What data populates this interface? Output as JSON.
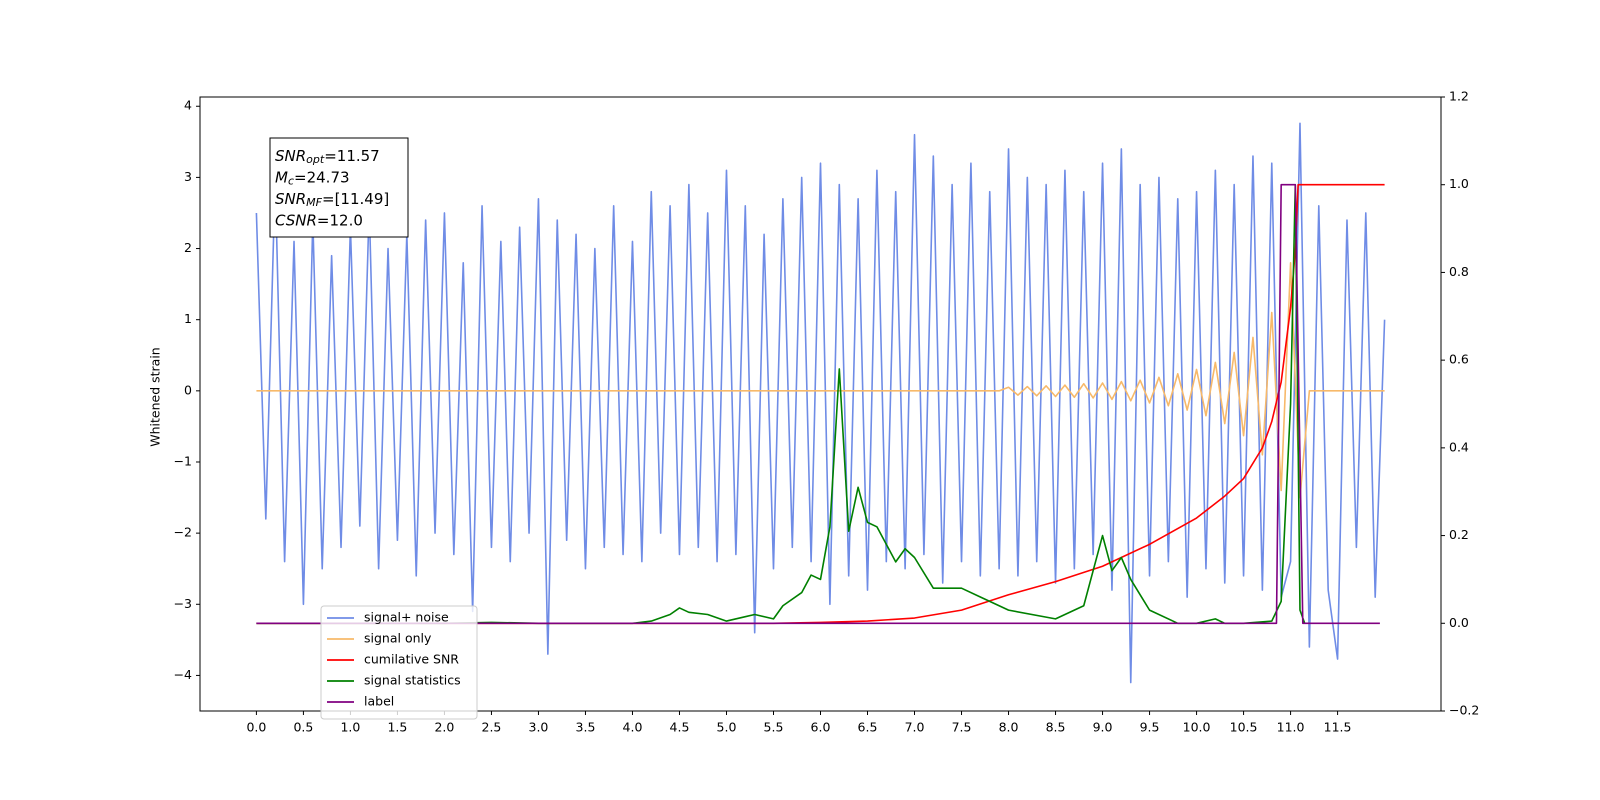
{
  "chart_data": {
    "type": "line",
    "ylabel": "Whitened strain",
    "xlim": [
      -0.6,
      12.6
    ],
    "ylim": [
      -4.5,
      4.13
    ],
    "y2lim": [
      -0.2,
      1.2
    ],
    "xticks": [
      {
        "value": 0,
        "label": "0.0"
      },
      0.5,
      {
        "value": 1,
        "label": "1.0"
      },
      1.5,
      {
        "value": 2,
        "label": "2.0"
      },
      2.5,
      {
        "value": 3,
        "label": "3.0"
      },
      3.5,
      {
        "value": 4,
        "label": "4.0"
      },
      4.5,
      {
        "value": 5,
        "label": "5.0"
      },
      5.5,
      {
        "value": 6,
        "label": "6.0"
      },
      6.5,
      {
        "value": 7,
        "label": "7.0"
      },
      7.5,
      {
        "value": 8,
        "label": "8.0"
      },
      8.5,
      {
        "value": 9,
        "label": "9.0"
      },
      9.5,
      {
        "value": 10,
        "label": "10.0"
      },
      10.5,
      {
        "value": 11,
        "label": "11.0"
      },
      11.5
    ],
    "yticks": [
      {
        "value": -4,
        "label": "−4"
      },
      {
        "value": -3,
        "label": "−3"
      },
      {
        "value": -2,
        "label": "−2"
      },
      {
        "value": -1,
        "label": "−1"
      },
      0,
      1,
      2,
      3,
      4
    ],
    "y2ticks": [
      {
        "value": -0.2,
        "label": "−0.2"
      },
      {
        "value": 0,
        "label": "0.0"
      },
      0.2,
      0.4,
      0.6,
      0.8,
      {
        "value": 1,
        "label": "1.0"
      },
      1.2
    ],
    "legend": "lower left",
    "annotations": [
      {
        "main": "SNR",
        "sub": "opt",
        "rest": "=11.57"
      },
      {
        "main": "M",
        "sub": "c",
        "rest": "=24.73"
      },
      {
        "main": "SNR",
        "sub": "MF",
        "rest": "=[11.49]"
      },
      {
        "main": "CSNR",
        "sub": null,
        "rest": "=12.0"
      }
    ],
    "series": [
      {
        "name": "signal+ noise",
        "color": "#6f8ce6",
        "axis": "y",
        "x": [
          0.0,
          0.1,
          0.2,
          0.3,
          0.4,
          0.5,
          0.6,
          0.7,
          0.8,
          0.9,
          1.0,
          1.1,
          1.2,
          1.3,
          1.4,
          1.5,
          1.6,
          1.7,
          1.8,
          1.9,
          2.0,
          2.1,
          2.2,
          2.3,
          2.4,
          2.5,
          2.6,
          2.7,
          2.8,
          2.9,
          3.0,
          3.1,
          3.2,
          3.3,
          3.4,
          3.5,
          3.6,
          3.7,
          3.8,
          3.9,
          4.0,
          4.1,
          4.2,
          4.3,
          4.4,
          4.5,
          4.6,
          4.7,
          4.8,
          4.9,
          5.0,
          5.1,
          5.2,
          5.3,
          5.4,
          5.5,
          5.6,
          5.7,
          5.8,
          5.9,
          6.0,
          6.1,
          6.2,
          6.3,
          6.4,
          6.5,
          6.6,
          6.7,
          6.8,
          6.9,
          7.0,
          7.1,
          7.2,
          7.3,
          7.4,
          7.5,
          7.6,
          7.7,
          7.8,
          7.9,
          8.0,
          8.1,
          8.2,
          8.3,
          8.4,
          8.5,
          8.6,
          8.7,
          8.8,
          8.9,
          9.0,
          9.1,
          9.2,
          9.3,
          9.4,
          9.5,
          9.6,
          9.7,
          9.8,
          9.9,
          10.0,
          10.1,
          10.2,
          10.3,
          10.4,
          10.5,
          10.6,
          10.7,
          10.8,
          10.9,
          11.0,
          11.1,
          11.2,
          11.3,
          11.4,
          11.5,
          11.6,
          11.7,
          11.8,
          11.9,
          12.0
        ],
        "values": [
          2.5,
          -1.8,
          3.0,
          -2.4,
          2.1,
          -3.0,
          2.4,
          -2.5,
          1.9,
          -2.2,
          2.3,
          -1.9,
          2.6,
          -2.5,
          2.0,
          -2.1,
          2.2,
          -2.6,
          2.4,
          -2.0,
          2.5,
          -2.3,
          1.8,
          -3.1,
          2.6,
          -2.2,
          2.1,
          -2.4,
          2.3,
          -2.0,
          2.7,
          -3.7,
          2.4,
          -2.1,
          2.2,
          -2.5,
          2.0,
          -2.2,
          2.6,
          -2.3,
          2.1,
          -2.4,
          2.8,
          -2.0,
          2.6,
          -2.3,
          2.9,
          -2.2,
          2.5,
          -2.4,
          3.1,
          -2.3,
          2.6,
          -3.4,
          2.2,
          -2.5,
          2.7,
          -2.2,
          3.0,
          -2.4,
          3.2,
          -3.0,
          2.9,
          -2.6,
          2.7,
          -2.8,
          3.1,
          -2.4,
          2.8,
          -2.5,
          3.6,
          -2.3,
          3.3,
          -2.7,
          2.9,
          -2.4,
          3.2,
          -2.6,
          2.8,
          -2.5,
          3.4,
          -2.6,
          3.0,
          -2.4,
          2.9,
          -2.7,
          3.1,
          -2.5,
          2.8,
          -2.3,
          3.2,
          -2.8,
          3.4,
          -4.1,
          2.9,
          -2.6,
          3.0,
          -2.4,
          2.7,
          -2.9,
          2.8,
          -2.5,
          3.1,
          -2.7,
          2.9,
          -2.6,
          3.3,
          -2.8,
          3.2,
          -2.9,
          -2.4,
          3.76,
          -3.6,
          2.6,
          -2.8,
          -3.77,
          2.4,
          -2.2,
          2.5,
          -2.9,
          1.0
        ]
      },
      {
        "name": "signal only",
        "color": "#f7b96a",
        "axis": "y",
        "x": [
          0,
          7.9,
          8.0,
          8.1,
          8.2,
          8.3,
          8.4,
          8.5,
          8.6,
          8.7,
          8.8,
          8.9,
          9.0,
          9.1,
          9.2,
          9.3,
          9.4,
          9.5,
          9.6,
          9.7,
          9.8,
          9.9,
          10.0,
          10.1,
          10.2,
          10.3,
          10.4,
          10.5,
          10.6,
          10.7,
          10.8,
          10.9,
          11.0,
          11.1,
          11.2,
          12.0
        ],
        "values": [
          0,
          0,
          0.05,
          -0.06,
          0.06,
          -0.07,
          0.07,
          -0.08,
          0.08,
          -0.09,
          0.1,
          -0.1,
          0.11,
          -0.12,
          0.13,
          -0.14,
          0.15,
          -0.17,
          0.19,
          -0.21,
          0.24,
          -0.27,
          0.3,
          -0.35,
          0.4,
          -0.46,
          0.54,
          -0.63,
          0.75,
          -0.9,
          1.1,
          -1.4,
          1.8,
          -1.5,
          0,
          0
        ]
      },
      {
        "name": "cumilative SNR",
        "color": "#ff0000",
        "axis": "y2",
        "x": [
          0,
          5.5,
          6.0,
          6.5,
          7.0,
          7.5,
          8.0,
          8.5,
          9.0,
          9.5,
          10.0,
          10.3,
          10.5,
          10.7,
          10.8,
          10.9,
          11.0,
          11.05,
          11.08,
          11.2,
          12.0
        ],
        "values": [
          0,
          0,
          0.002,
          0.005,
          0.012,
          0.03,
          0.065,
          0.095,
          0.13,
          0.18,
          0.24,
          0.29,
          0.33,
          0.4,
          0.46,
          0.55,
          0.72,
          0.85,
          1.0,
          1.0,
          1.0
        ]
      },
      {
        "name": "signal statistics",
        "color": "#008000",
        "axis": "y2",
        "x": [
          0,
          1.0,
          2.0,
          2.5,
          3.0,
          4.0,
          4.2,
          4.4,
          4.5,
          4.6,
          4.8,
          5.0,
          5.2,
          5.3,
          5.5,
          5.6,
          5.8,
          5.9,
          6.0,
          6.1,
          6.2,
          6.3,
          6.4,
          6.5,
          6.6,
          6.8,
          6.9,
          7.0,
          7.2,
          7.4,
          7.5,
          7.7,
          8.0,
          8.5,
          8.8,
          9.0,
          9.1,
          9.2,
          9.3,
          9.5,
          9.8,
          10.0,
          10.2,
          10.3,
          10.5,
          10.8,
          10.9,
          11.0,
          11.05,
          11.1,
          11.15
        ],
        "values": [
          0,
          0,
          0,
          0.002,
          0,
          0,
          0.005,
          0.02,
          0.035,
          0.025,
          0.02,
          0.005,
          0.015,
          0.02,
          0.01,
          0.04,
          0.07,
          0.11,
          0.1,
          0.22,
          0.58,
          0.21,
          0.31,
          0.23,
          0.22,
          0.14,
          0.17,
          0.15,
          0.08,
          0.08,
          0.08,
          0.06,
          0.03,
          0.01,
          0.04,
          0.2,
          0.12,
          0.15,
          0.1,
          0.03,
          0.0,
          0.0,
          0.01,
          0.0,
          0.0,
          0.005,
          0.05,
          0.5,
          1.0,
          0.03,
          0.0
        ]
      },
      {
        "name": "label",
        "color": "#800080",
        "axis": "y2",
        "x": [
          0,
          10.85,
          10.9,
          11.05,
          11.13,
          11.95
        ],
        "values": [
          0,
          0,
          1,
          1,
          0,
          0
        ]
      }
    ]
  }
}
